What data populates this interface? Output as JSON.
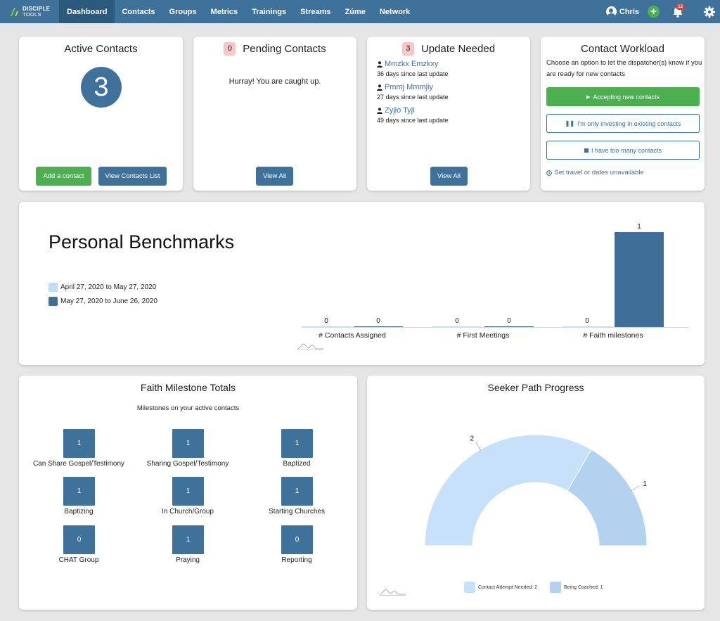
{
  "nav": {
    "logo_line1": "DISCIPLE",
    "logo_line2": "TOOLS",
    "items": [
      "Dashboard",
      "Contacts",
      "Groups",
      "Metrics",
      "Trainings",
      "Streams",
      "Zúme",
      "Network"
    ],
    "active": "Dashboard",
    "user_name": "Chris",
    "notification_count": "12",
    "icons": [
      "user-icon",
      "plus-icon",
      "bell-icon",
      "gear-icon"
    ]
  },
  "active_contacts": {
    "title": "Active Contacts",
    "count": "3",
    "add_label": "Add a contact",
    "view_label": "View Contacts List"
  },
  "pending": {
    "title": "Pending Contacts",
    "count": "0",
    "message": "Hurray! You are caught up.",
    "view_all": "View All"
  },
  "update_needed": {
    "title": "Update Needed",
    "count": "3",
    "items": [
      {
        "name": "Mmzkx Emzkxy",
        "since": "36 days since last update"
      },
      {
        "name": "Pmmj Mmmjiy",
        "since": "27 days since last update"
      },
      {
        "name": "Zyjio Tyji",
        "since": "49 days since last update"
      }
    ],
    "view_all": "View All"
  },
  "workload": {
    "title": "Contact Workload",
    "description": "Choose an option to let the dispatcher(s) know if you are ready for new contacts",
    "options": [
      "Accepting new contacts",
      "I'm only investing in existing contacts",
      "I have too many contacts"
    ],
    "travel_link": "Set travel or dates unavailable"
  },
  "benchmarks": {
    "title": "Personal Benchmarks",
    "legend": [
      "April 27, 2020 to May 27, 2020",
      "May 27, 2020 to June 26, 2020"
    ],
    "colors": {
      "previous": "#c2dcf5",
      "current": "#3f6e96"
    }
  },
  "chart_data": [
    {
      "type": "bar",
      "categories": [
        "# Contacts Assigned",
        "# First Meetings",
        "# Faith milestones"
      ],
      "series": [
        {
          "name": "April 27, 2020 to May 27, 2020",
          "values": [
            0,
            0,
            0
          ]
        },
        {
          "name": "May 27, 2020 to June 26, 2020",
          "values": [
            0,
            0,
            1
          ]
        }
      ],
      "ylim": [
        0,
        1
      ],
      "legend": "left"
    },
    {
      "type": "pie",
      "title": "Seeker Path Progress",
      "labels": [
        "Contact Attempt Needed",
        "Being Coached"
      ],
      "values": [
        2,
        1
      ],
      "legend_labels": [
        "Contact Attempt Needed: 2",
        "Being Coached: 1"
      ],
      "colors": [
        "#c8e1fa",
        "#b3d2f0"
      ],
      "legend": "bottom"
    }
  ],
  "faith_milestones": {
    "title": "Faith Milestone Totals",
    "subtitle": "Milestones on your active contacts",
    "items": [
      {
        "label": "Can Share Gospel/Testimony",
        "value": "1"
      },
      {
        "label": "Sharing Gospel/Testimony",
        "value": "1"
      },
      {
        "label": "Baptized",
        "value": "1"
      },
      {
        "label": "Baptizing",
        "value": "1"
      },
      {
        "label": "In Church/Group",
        "value": "1"
      },
      {
        "label": "Starting Churches",
        "value": "1"
      },
      {
        "label": "CHAT Group",
        "value": "0"
      },
      {
        "label": "Praying",
        "value": "1"
      },
      {
        "label": "Reporting",
        "value": "0"
      }
    ]
  }
}
